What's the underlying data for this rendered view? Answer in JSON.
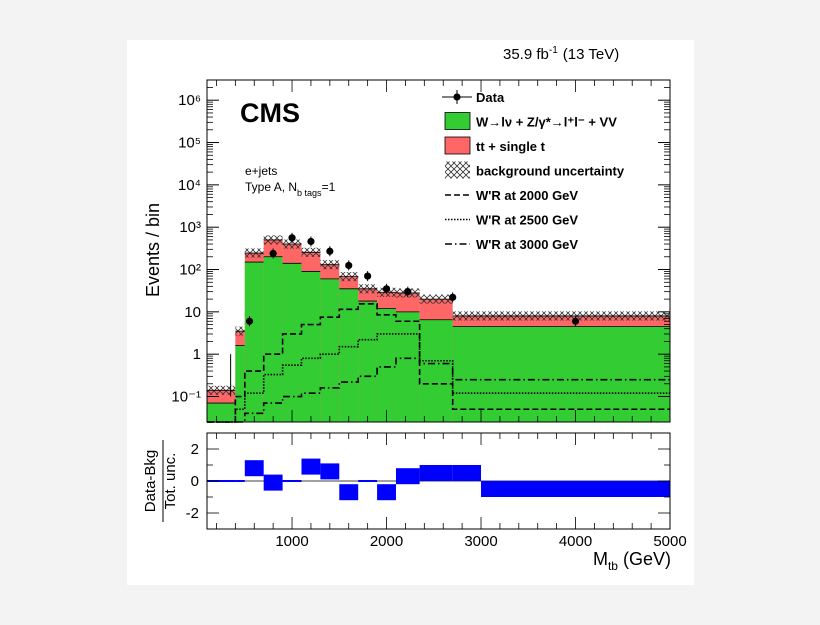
{
  "header": {
    "lumi": "35.9 fb",
    "lumi_exp": "-1",
    "energy": "(13 TeV)"
  },
  "experiment": "CMS",
  "category": {
    "line1": "e+jets",
    "line2_main": "Type A, N",
    "line2_sub": "b tags",
    "line2_end": "=1"
  },
  "colors": {
    "wjets": "#33cc33",
    "ttbar": "#ff6666",
    "ratio": "#0000ff"
  },
  "legend": [
    {
      "id": "data",
      "text": "Data",
      "marker": "point"
    },
    {
      "id": "wjets",
      "text": "W→lν + Z/γ*→l⁺l⁻ + VV",
      "marker": "fill-green"
    },
    {
      "id": "ttbar",
      "text": "tt + single t",
      "marker": "fill-red"
    },
    {
      "id": "unc",
      "text": "background uncertainty",
      "marker": "hatch"
    },
    {
      "id": "w2000",
      "text": "W'R at 2000 GeV",
      "marker": "dashed"
    },
    {
      "id": "w2500",
      "text": "W'R at 2500 GeV",
      "marker": "dotted"
    },
    {
      "id": "w3000",
      "text": "W'R at 3000 GeV",
      "marker": "dashdot"
    }
  ],
  "chart_data": [
    {
      "type": "bar",
      "panel": "main",
      "ylabel": "Events / bin",
      "yscale": "log",
      "ylim": [
        0.025,
        3000000
      ],
      "xlim": [
        100,
        5000
      ],
      "yticks": [
        "10⁻¹",
        "1",
        "10",
        "10²",
        "10³",
        "10⁴",
        "10⁵",
        "10⁶"
      ],
      "bin_edges": [
        100,
        400,
        500,
        700,
        900,
        1100,
        1300,
        1500,
        1700,
        1900,
        2100,
        2350,
        2700,
        3000,
        5000
      ],
      "series": [
        {
          "name": "W→lν + Z/γ*→l⁺l⁻ + VV",
          "stack_top": [
            0.07,
            1.6,
            150,
            200,
            140,
            90,
            60,
            35,
            18,
            12,
            10,
            6.5,
            4.5,
            4.5
          ]
        },
        {
          "name": "tt + single t",
          "stack_top": [
            0.14,
            3.5,
            245,
            500,
            400,
            255,
            130,
            68,
            35,
            29,
            28,
            20,
            8,
            8
          ]
        },
        {
          "name": "Data",
          "x": [
            550,
            800,
            1000,
            1200,
            1400,
            1600,
            1800,
            2000,
            2225,
            2700,
            4000
          ],
          "values": [
            6,
            240,
            560,
            460,
            270,
            125,
            70,
            35,
            30,
            22,
            6
          ]
        },
        {
          "name": "W'R at 2000 GeV",
          "values": [
            0.025,
            0.1,
            0.4,
            1.0,
            3.0,
            5.0,
            7.5,
            11.5,
            15.5,
            8.5,
            6.0,
            0.2,
            0.05,
            0.05
          ]
        },
        {
          "name": "W'R at 2500 GeV",
          "values": [
            0.025,
            0.05,
            0.12,
            0.33,
            0.55,
            0.8,
            1.0,
            1.5,
            2.2,
            3.0,
            3.0,
            0.7,
            0.12,
            0.12
          ]
        },
        {
          "name": "W'R at 3000 GeV",
          "values": [
            0.025,
            0.025,
            0.04,
            0.07,
            0.1,
            0.12,
            0.16,
            0.22,
            0.3,
            0.5,
            0.8,
            0.6,
            0.25,
            0.25
          ]
        }
      ]
    },
    {
      "type": "bar",
      "panel": "ratio",
      "xlabel": "M_tb (GeV)",
      "ylabel": "Data-Bkg / Tot. unc.",
      "ylim": [
        -3,
        3
      ],
      "xlim": [
        100,
        5000
      ],
      "xticks": [
        "1000",
        "2000",
        "3000",
        "4000",
        "5000"
      ],
      "yticks": [
        "-2",
        "0",
        "2"
      ],
      "bin_edges": [
        100,
        400,
        500,
        700,
        900,
        1100,
        1300,
        1500,
        1700,
        1900,
        2100,
        2350,
        2700,
        3000,
        5000
      ],
      "values": [
        0.0,
        0.0,
        0.8,
        -0.1,
        0.0,
        0.9,
        0.6,
        -0.7,
        0.0,
        -0.7,
        0.3,
        0.5,
        0.5,
        -0.5
      ]
    }
  ]
}
